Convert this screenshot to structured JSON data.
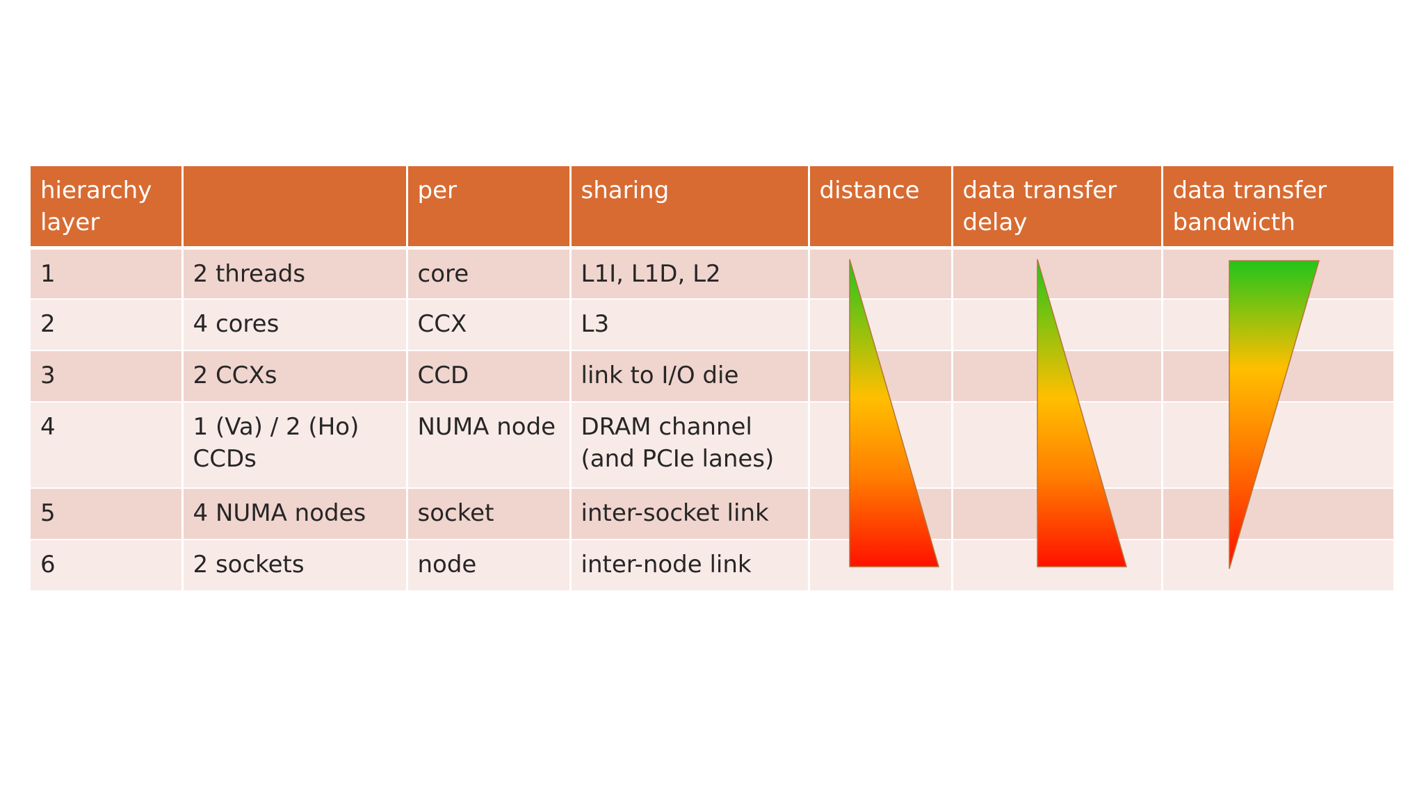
{
  "table": {
    "headers": [
      "hierarchy layer",
      "",
      "per",
      "sharing",
      "distance",
      "data transfer delay",
      "data transfer bandwicth"
    ],
    "rows": [
      {
        "layer": "1",
        "count": "2 threads",
        "per": "core",
        "sharing": "L1I, L1D, L2"
      },
      {
        "layer": "2",
        "count": "4 cores",
        "per": "CCX",
        "sharing": "L3"
      },
      {
        "layer": "3",
        "count": "2 CCXs",
        "per": "CCD",
        "sharing": "link to I/O die"
      },
      {
        "layer": "4",
        "count": "1 (Va) / 2 (Ho) CCDs",
        "per": "NUMA node",
        "sharing": "DRAM channel (and PCIe lanes)"
      },
      {
        "layer": "5",
        "count": "4 NUMA nodes",
        "per": "socket",
        "sharing": "inter-socket link"
      },
      {
        "layer": "6",
        "count": "2 sockets",
        "per": "node",
        "sharing": "inter-node link"
      }
    ]
  },
  "indicators": {
    "distance": {
      "shape": "increasing-wedge",
      "gradient": [
        "#22c41c",
        "#ffbf00",
        "#ff8000",
        "#ff1200"
      ]
    },
    "data_transfer_delay": {
      "shape": "increasing-wedge",
      "gradient": [
        "#22c41c",
        "#ffbf00",
        "#ff8000",
        "#ff1200"
      ]
    },
    "data_transfer_bandwidth": {
      "shape": "decreasing-wedge",
      "gradient": [
        "#22c41c",
        "#ffbf00",
        "#ff8000",
        "#ff1200"
      ]
    }
  },
  "colors": {
    "header_bg": "#d86b32",
    "row_odd": "#f0d4ce",
    "row_even": "#f8eae7"
  }
}
